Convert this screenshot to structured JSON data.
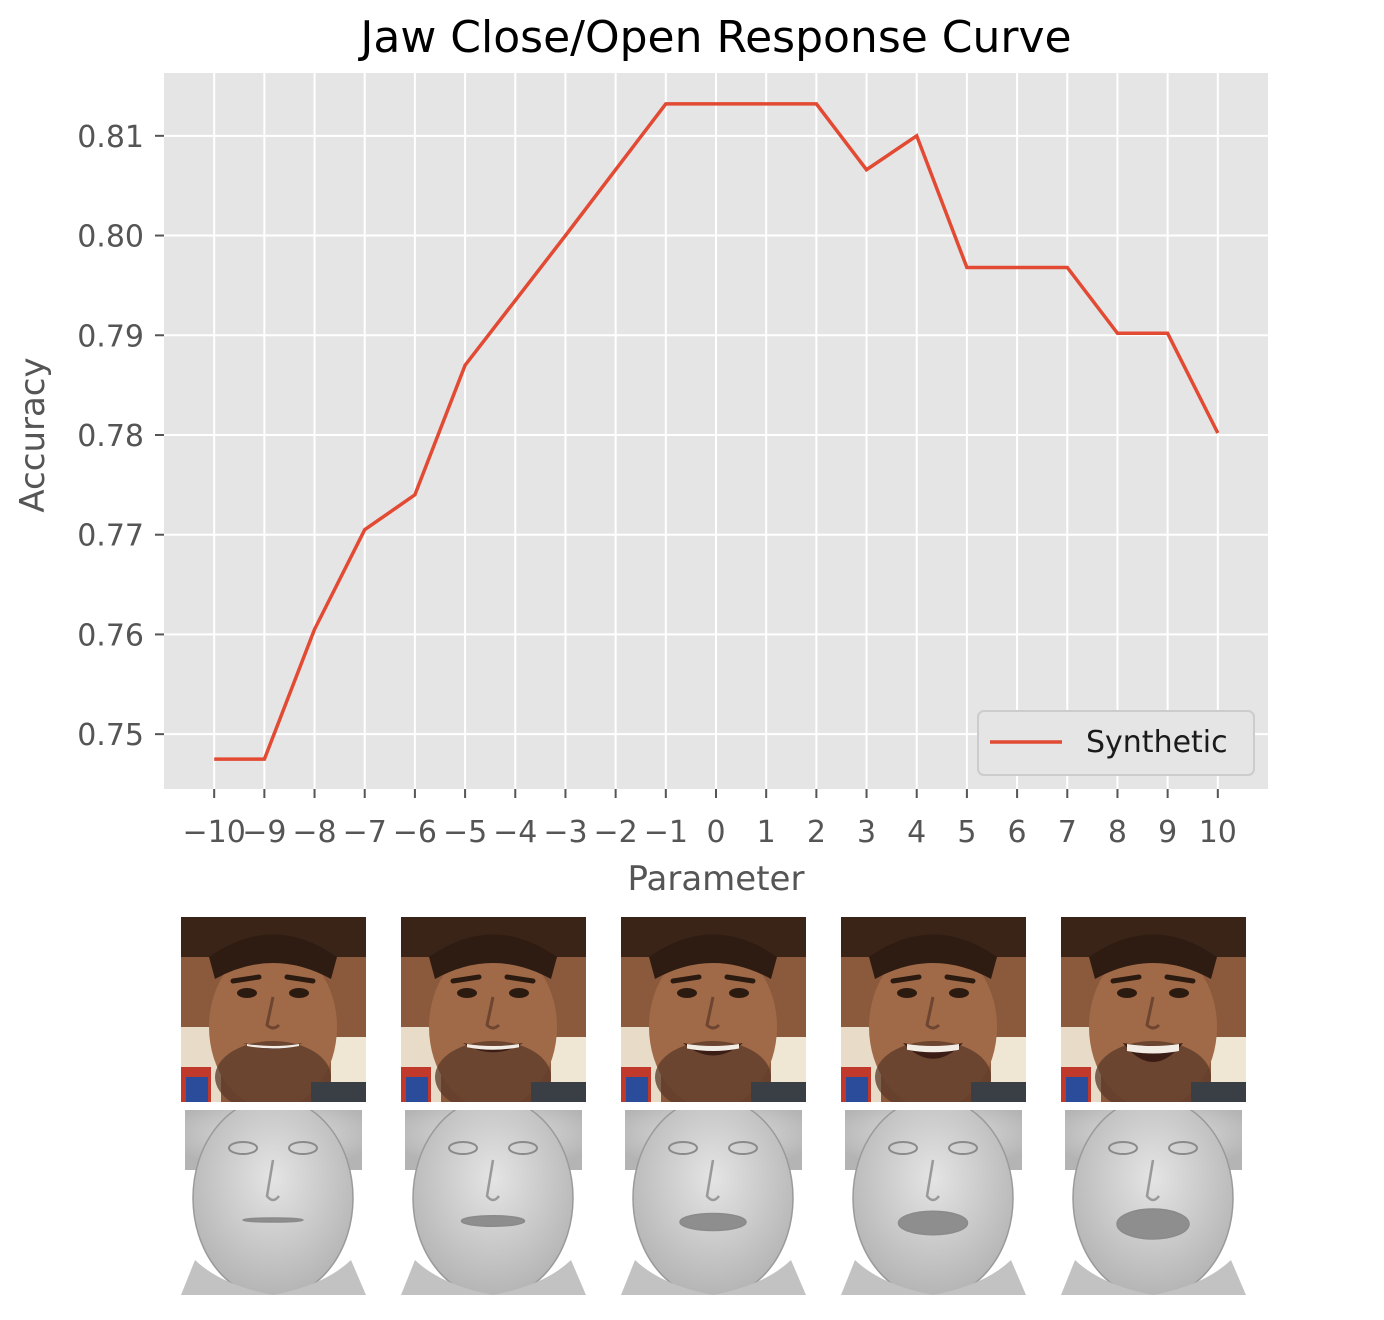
{
  "chart_data": {
    "type": "line",
    "title": "Jaw Close/Open Response Curve",
    "xlabel": "Parameter",
    "ylabel": "Accuracy",
    "x": [
      -10,
      -9,
      -8,
      -7,
      -6,
      -5,
      -4,
      -3,
      -2,
      -1,
      0,
      1,
      2,
      3,
      4,
      5,
      6,
      7,
      8,
      9,
      10
    ],
    "series": [
      {
        "name": "Synthetic",
        "color": "#E24A33",
        "values": [
          0.7475,
          0.7475,
          0.7605,
          0.7705,
          0.774,
          0.787,
          0.7935,
          0.8,
          0.8066,
          0.8132,
          0.8132,
          0.8132,
          0.8132,
          0.8066,
          0.81,
          0.7968,
          0.7968,
          0.7968,
          0.7902,
          0.7902,
          0.7802
        ]
      }
    ],
    "xticks": [
      "−10",
      "−9",
      "−8",
      "−7",
      "−6",
      "−5",
      "−4",
      "−3",
      "−2",
      "−1",
      "0",
      "1",
      "2",
      "3",
      "4",
      "5",
      "6",
      "7",
      "8",
      "9",
      "10"
    ],
    "yticks": [
      0.75,
      0.76,
      0.77,
      0.78,
      0.79,
      0.8,
      0.81
    ],
    "ytick_labels": [
      "0.75",
      "0.76",
      "0.77",
      "0.78",
      "0.79",
      "0.80",
      "0.81"
    ],
    "xlim": [
      -11,
      11
    ],
    "ylim": [
      0.7445,
      0.8163
    ],
    "grid": true,
    "style": "ggplot",
    "legend_position": "lower right"
  },
  "figures": {
    "photo_row": [
      "face-photo",
      "face-photo",
      "face-photo",
      "face-photo",
      "face-photo"
    ],
    "mesh_row": [
      "face-mesh",
      "face-mesh",
      "face-mesh",
      "face-mesh",
      "face-mesh"
    ],
    "mouth_openness": [
      0.0,
      0.25,
      0.5,
      0.75,
      1.0
    ]
  }
}
